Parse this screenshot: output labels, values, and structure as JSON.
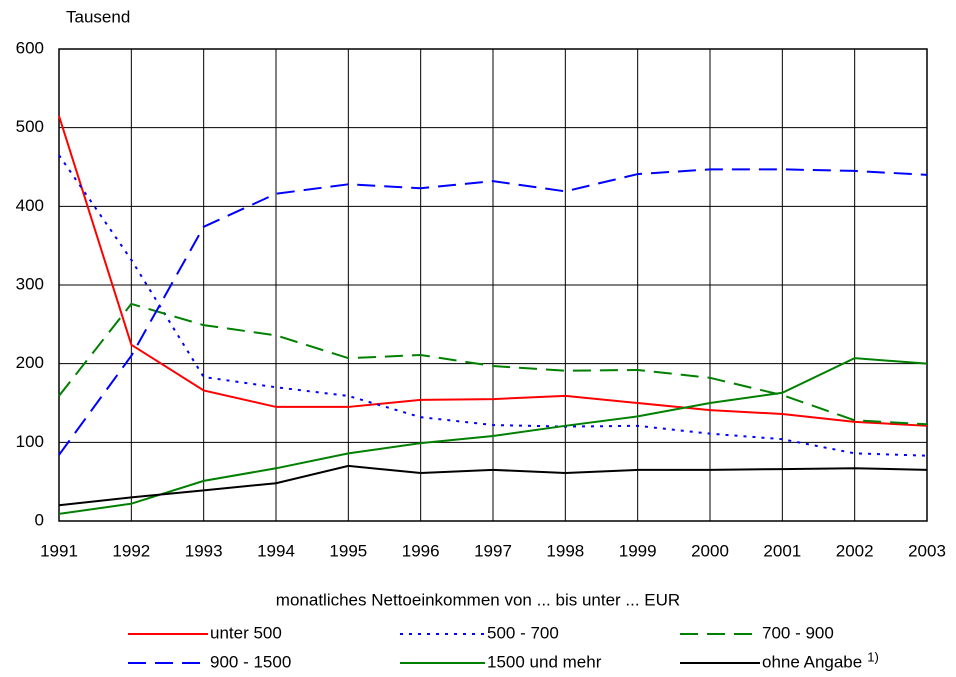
{
  "chart_data": {
    "type": "line",
    "ylabel": "Tausend",
    "legend_title": "monatliches Nettoeinkommen von ... bis unter ... EUR",
    "x": [
      1991,
      1992,
      1993,
      1994,
      1995,
      1996,
      1997,
      1998,
      1999,
      2000,
      2001,
      2002,
      2003
    ],
    "xlim": [
      1991,
      2003
    ],
    "xticks": [
      1991,
      1992,
      1993,
      1994,
      1995,
      1996,
      1997,
      1998,
      1999,
      2000,
      2001,
      2002,
      2003
    ],
    "ylim": [
      0,
      600
    ],
    "yticks": [
      0,
      100,
      200,
      300,
      400,
      500,
      600
    ],
    "grid": true,
    "legend": "bottom",
    "series": [
      {
        "name": "unter 500",
        "color": "#ff0000",
        "style": "solid",
        "values": [
          515,
          224,
          166,
          145,
          145,
          154,
          155,
          159,
          150,
          141,
          136,
          126,
          121
        ]
      },
      {
        "name": "500 - 700",
        "color": "#0000ff",
        "style": "dotted",
        "values": [
          465,
          332,
          183,
          170,
          159,
          132,
          122,
          120,
          121,
          111,
          104,
          86,
          83
        ]
      },
      {
        "name": "700 - 900",
        "color": "#008000",
        "style": "dashed",
        "values": [
          159,
          276,
          249,
          236,
          207,
          211,
          197,
          191,
          192,
          182,
          160,
          128,
          123
        ]
      },
      {
        "name": "900 - 1500",
        "color": "#0000ff",
        "style": "dashed",
        "values": [
          84,
          210,
          374,
          416,
          428,
          423,
          432,
          419,
          441,
          447,
          447,
          445,
          440
        ]
      },
      {
        "name": "1500 und mehr",
        "color": "#008000",
        "style": "solid",
        "values": [
          9,
          22,
          51,
          67,
          86,
          99,
          108,
          121,
          133,
          150,
          163,
          207,
          200
        ]
      },
      {
        "name": "ohne Angabe",
        "note": "1)",
        "color": "#000000",
        "style": "solid",
        "values": [
          20,
          30,
          39,
          48,
          70,
          61,
          65,
          61,
          65,
          65,
          66,
          67,
          65
        ]
      }
    ]
  }
}
